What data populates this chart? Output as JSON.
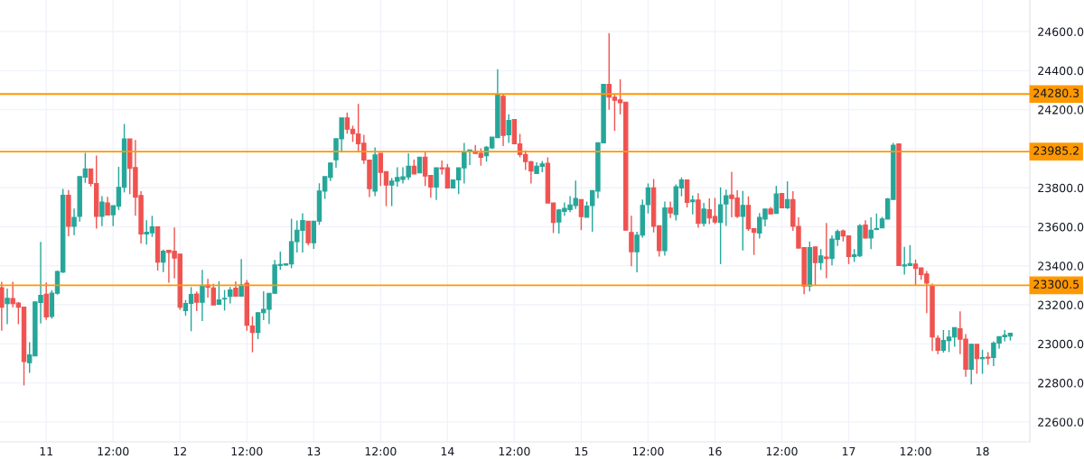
{
  "chart_data": {
    "type": "candlestick",
    "categories": [
      null,
      null,
      null,
      null,
      null,
      null,
      null,
      null,
      "11",
      null,
      null,
      null,
      null,
      null,
      null,
      null,
      null,
      null,
      null,
      null,
      "12:00",
      null,
      null,
      null,
      null,
      null,
      null,
      null,
      null,
      null,
      null,
      null,
      "12",
      null,
      null,
      null,
      null,
      null,
      null,
      null,
      null,
      null,
      null,
      null,
      "12:00",
      null,
      null,
      null,
      null,
      null,
      null,
      null,
      null,
      null,
      null,
      null,
      "13",
      null,
      null,
      null,
      null,
      null,
      null,
      null,
      null,
      null,
      null,
      null,
      "12:00",
      null,
      null,
      null,
      null,
      null,
      null,
      null,
      null,
      null,
      null,
      null,
      "14",
      null,
      null,
      null,
      null,
      null,
      null,
      null,
      null,
      null,
      null,
      null,
      "12:00",
      null,
      null,
      null,
      null,
      null,
      null,
      null,
      null,
      null,
      null,
      null,
      "15",
      null,
      null,
      null,
      null,
      null,
      null,
      null,
      null,
      null,
      null,
      null,
      "12:00",
      null,
      null,
      null,
      null,
      null,
      null,
      null,
      null,
      null,
      null,
      null,
      "16",
      null,
      null,
      null,
      null,
      null,
      null,
      null,
      null,
      null,
      null,
      null,
      "12:00",
      null,
      null,
      null,
      null,
      null,
      null,
      null,
      null,
      null,
      null,
      null,
      "17",
      null,
      null,
      null,
      null,
      null,
      null,
      null,
      null,
      null,
      null,
      null,
      "12:00",
      null,
      null,
      null,
      null,
      null,
      null,
      null,
      null,
      null,
      null,
      null,
      "18",
      null,
      null,
      null,
      null,
      null
    ],
    "ohlc": [
      [
        23288,
        23318,
        23067,
        23188
      ],
      [
        23206,
        23283,
        23101,
        23234
      ],
      [
        23232,
        23318,
        23188,
        23206
      ],
      [
        23209,
        23214,
        23101,
        23188
      ],
      [
        23188,
        23188,
        22787,
        22910
      ],
      [
        22904,
        23009,
        22852,
        22944
      ],
      [
        22938,
        23215,
        22938,
        23215
      ],
      [
        23212,
        23522,
        23104,
        23249
      ],
      [
        23254,
        23315,
        23123,
        23138
      ],
      [
        23141,
        23275,
        23129,
        23260
      ],
      [
        23260,
        23375,
        23252,
        23371
      ],
      [
        23368,
        23794,
        23363,
        23762
      ],
      [
        23762,
        23788,
        23551,
        23602
      ],
      [
        23602,
        23694,
        23557,
        23648
      ],
      [
        23653,
        23857,
        23626,
        23857
      ],
      [
        23854,
        23979,
        23825,
        23896
      ],
      [
        23896,
        23896,
        23807,
        23822
      ],
      [
        23822,
        23965,
        23591,
        23653
      ],
      [
        23653,
        23757,
        23603,
        23727
      ],
      [
        23722,
        23754,
        23660,
        23660
      ],
      [
        23662,
        23708,
        23603,
        23708
      ],
      [
        23705,
        23907,
        23686,
        23802
      ],
      [
        23802,
        24127,
        23776,
        24050
      ],
      [
        24050,
        24050,
        23768,
        23899
      ],
      [
        23904,
        24045,
        23656,
        23751
      ],
      [
        23760,
        23782,
        23514,
        23563
      ],
      [
        23563,
        23634,
        23509,
        23572
      ],
      [
        23569,
        23656,
        23548,
        23600
      ],
      [
        23600,
        23600,
        23375,
        23419
      ],
      [
        23419,
        23483,
        23368,
        23475
      ],
      [
        23480,
        23480,
        23314,
        23468
      ],
      [
        23475,
        23597,
        23335,
        23440
      ],
      [
        23460,
        23460,
        23175,
        23188
      ],
      [
        23171,
        23225,
        23145,
        23207
      ],
      [
        23207,
        23291,
        23065,
        23253
      ],
      [
        23256,
        23268,
        23168,
        23213
      ],
      [
        23213,
        23379,
        23117,
        23296
      ],
      [
        23302,
        23333,
        23237,
        23291
      ],
      [
        23287,
        23308,
        23199,
        23199
      ],
      [
        23203,
        23321,
        23203,
        23225
      ],
      [
        23230,
        23276,
        23171,
        23233
      ],
      [
        23243,
        23291,
        23207,
        23276
      ],
      [
        23285,
        23321,
        23245,
        23245
      ],
      [
        23245,
        23435,
        23245,
        23302
      ],
      [
        23311,
        23327,
        23068,
        23096
      ],
      [
        23091,
        23140,
        22957,
        23059
      ],
      [
        23059,
        23160,
        23025,
        23160
      ],
      [
        23160,
        23270,
        23122,
        23177
      ],
      [
        23177,
        23259,
        23102,
        23259
      ],
      [
        23259,
        23430,
        23259,
        23404
      ],
      [
        23402,
        23473,
        23379,
        23407
      ],
      [
        23404,
        23412,
        23402,
        23410
      ],
      [
        23410,
        23641,
        23388,
        23524
      ],
      [
        23524,
        23632,
        23468,
        23582
      ],
      [
        23582,
        23669,
        23468,
        23632
      ],
      [
        23629,
        23629,
        23505,
        23518
      ],
      [
        23518,
        23629,
        23487,
        23629
      ],
      [
        23629,
        23823,
        23610,
        23783
      ],
      [
        23783,
        23857,
        23743,
        23857
      ],
      [
        23853,
        23930,
        23835,
        23927
      ],
      [
        23943,
        24051,
        23903,
        24051
      ],
      [
        24051,
        24158,
        23984,
        24158
      ],
      [
        24158,
        24185,
        24077,
        24100
      ],
      [
        24100,
        24118,
        24035,
        24077
      ],
      [
        24076,
        24230,
        23984,
        24025
      ],
      [
        24028,
        24071,
        23922,
        23942
      ],
      [
        23942,
        23942,
        23753,
        23796
      ],
      [
        23783,
        24007,
        23757,
        23968
      ],
      [
        23976,
        23976,
        23809,
        23879
      ],
      [
        23883,
        23883,
        23706,
        23814
      ],
      [
        23814,
        23850,
        23706,
        23834
      ],
      [
        23834,
        23905,
        23806,
        23853
      ],
      [
        23843,
        23905,
        23822,
        23856
      ],
      [
        23856,
        23976,
        23840,
        23910
      ],
      [
        23910,
        23945,
        23871,
        23871
      ],
      [
        23876,
        23957,
        23876,
        23957
      ],
      [
        23957,
        23983,
        23809,
        23860
      ],
      [
        23863,
        23863,
        23749,
        23803
      ],
      [
        23803,
        23902,
        23737,
        23902
      ],
      [
        23902,
        23939,
        23868,
        23897
      ],
      [
        23902,
        23922,
        23799,
        23799
      ],
      [
        23799,
        23840,
        23799,
        23840
      ],
      [
        23840,
        23902,
        23768,
        23902
      ],
      [
        23902,
        24030,
        23822,
        23984
      ],
      [
        23984,
        23994,
        23917,
        23994
      ],
      [
        23988,
        24019,
        23976,
        23976
      ],
      [
        23976,
        24002,
        23913,
        23956
      ],
      [
        23964,
        24014,
        23934,
        24007
      ],
      [
        24004,
        24059,
        23999,
        24059
      ],
      [
        24057,
        24407,
        24057,
        24279
      ],
      [
        24268,
        24279,
        24014,
        24068
      ],
      [
        24071,
        24176,
        24030,
        24145
      ],
      [
        24150,
        24150,
        24025,
        24025
      ],
      [
        24025,
        24076,
        23956,
        23970
      ],
      [
        23970,
        23991,
        23891,
        23934
      ],
      [
        23934,
        23937,
        23822,
        23886
      ],
      [
        23873,
        23930,
        23873,
        23911
      ],
      [
        23910,
        23937,
        23879,
        23922
      ],
      [
        23925,
        23956,
        23722,
        23722
      ],
      [
        23722,
        23722,
        23568,
        23622
      ],
      [
        23625,
        23691,
        23565,
        23686
      ],
      [
        23679,
        23725,
        23657,
        23694
      ],
      [
        23688,
        23757,
        23675,
        23712
      ],
      [
        23709,
        23837,
        23691,
        23745
      ],
      [
        23740,
        23740,
        23583,
        23652
      ],
      [
        23649,
        23729,
        23649,
        23706
      ],
      [
        23709,
        23786,
        23575,
        23786
      ],
      [
        23783,
        24030,
        23745,
        24030
      ],
      [
        24030,
        24330,
        24030,
        24330
      ],
      [
        24330,
        24592,
        24199,
        24264
      ],
      [
        24264,
        24276,
        24091,
        24248
      ],
      [
        24250,
        24356,
        24176,
        24236
      ],
      [
        24239,
        24239,
        23583,
        23583
      ],
      [
        23571,
        23657,
        23398,
        23472
      ],
      [
        23472,
        23575,
        23367,
        23557
      ],
      [
        23557,
        23740,
        23545,
        23709
      ],
      [
        23714,
        23822,
        23668,
        23799
      ],
      [
        23799,
        23845,
        23571,
        23602
      ],
      [
        23606,
        23606,
        23447,
        23478
      ],
      [
        23478,
        23729,
        23452,
        23697
      ],
      [
        23697,
        23729,
        23645,
        23671
      ],
      [
        23663,
        23817,
        23632,
        23805
      ],
      [
        23799,
        23853,
        23756,
        23840
      ],
      [
        23840,
        23840,
        23699,
        23725
      ],
      [
        23728,
        23760,
        23663,
        23737
      ],
      [
        23737,
        23772,
        23595,
        23617
      ],
      [
        23617,
        23722,
        23602,
        23691
      ],
      [
        23688,
        23745,
        23614,
        23645
      ],
      [
        23653,
        23748,
        23614,
        23625
      ],
      [
        23622,
        23802,
        23409,
        23713
      ],
      [
        23717,
        23790,
        23605,
        23759
      ],
      [
        23763,
        23882,
        23648,
        23745
      ],
      [
        23748,
        23787,
        23645,
        23653
      ],
      [
        23653,
        23784,
        23479,
        23710
      ],
      [
        23710,
        23756,
        23579,
        23590
      ],
      [
        23591,
        23591,
        23456,
        23571
      ],
      [
        23568,
        23671,
        23540,
        23648
      ],
      [
        23640,
        23691,
        23602,
        23691
      ],
      [
        23691,
        23702,
        23666,
        23666
      ],
      [
        23668,
        23810,
        23668,
        23768
      ],
      [
        23771,
        23771,
        23697,
        23697
      ],
      [
        23697,
        23833,
        23691,
        23740
      ],
      [
        23740,
        23782,
        23579,
        23602
      ],
      [
        23602,
        23648,
        23491,
        23491
      ],
      [
        23494,
        23494,
        23255,
        23297
      ],
      [
        23297,
        23525,
        23269,
        23494
      ],
      [
        23497,
        23497,
        23302,
        23417
      ],
      [
        23417,
        23486,
        23379,
        23451
      ],
      [
        23445,
        23620,
        23337,
        23437
      ],
      [
        23437,
        23556,
        23402,
        23537
      ],
      [
        23535,
        23586,
        23502,
        23576
      ],
      [
        23579,
        23586,
        23525,
        23553
      ],
      [
        23553,
        23553,
        23409,
        23448
      ],
      [
        23448,
        23486,
        23420,
        23456
      ],
      [
        23451,
        23614,
        23445,
        23606
      ],
      [
        23609,
        23633,
        23540,
        23543
      ],
      [
        23543,
        23648,
        23486,
        23582
      ],
      [
        23586,
        23668,
        23583,
        23591
      ],
      [
        23594,
        23651,
        23594,
        23640
      ],
      [
        23640,
        23748,
        23640,
        23743
      ],
      [
        23740,
        24030,
        23740,
        24018
      ],
      [
        24025,
        24025,
        23402,
        23402
      ],
      [
        23399,
        23497,
        23355,
        23405
      ],
      [
        23402,
        23506,
        23402,
        23412
      ],
      [
        23409,
        23432,
        23302,
        23386
      ],
      [
        23389,
        23389,
        23328,
        23355
      ],
      [
        23358,
        23374,
        23158,
        23312
      ],
      [
        23297,
        23309,
        22963,
        23035
      ],
      [
        23029,
        23044,
        22947,
        22967
      ],
      [
        22967,
        23071,
        22955,
        23017
      ],
      [
        23017,
        23071,
        22958,
        23035
      ],
      [
        23035,
        23083,
        22986,
        23083
      ],
      [
        23078,
        23167,
        22947,
        23024
      ],
      [
        23024,
        23050,
        22832,
        22870
      ],
      [
        22870,
        23001,
        22793,
        22998
      ],
      [
        22998,
        22998,
        22847,
        22924
      ],
      [
        22924,
        22970,
        22847,
        22930
      ],
      [
        22932,
        22958,
        22893,
        22927
      ],
      [
        22930,
        23013,
        22886,
        23004
      ],
      [
        23004,
        23037,
        22975,
        23037
      ],
      [
        23037,
        23071,
        23013,
        23044
      ],
      [
        23040,
        23055,
        23017,
        23054
      ]
    ],
    "ylim": [
      22498,
      24762
    ],
    "yticks": [
      {
        "value": 22600,
        "label": "22600.0"
      },
      {
        "value": 22800,
        "label": "22800.0"
      },
      {
        "value": 23000,
        "label": "23000.0"
      },
      {
        "value": 23200,
        "label": "23200.0"
      },
      {
        "value": 23400,
        "label": "23400.0"
      },
      {
        "value": 23600,
        "label": "23600.0"
      },
      {
        "value": 23800,
        "label": "23800.0"
      },
      {
        "value": 24000,
        "label": null
      },
      {
        "value": 24200,
        "label": "24200.0"
      },
      {
        "value": 24400,
        "label": "24400.0"
      },
      {
        "value": 24600,
        "label": "24600.0"
      }
    ],
    "ref_lines": [
      {
        "axis": "y",
        "value": 24280.3,
        "label": "24280.3",
        "color": "#ff9800"
      },
      {
        "axis": "y",
        "value": 23985.2,
        "label": "23985.2",
        "color": "#ff9800"
      },
      {
        "axis": "y",
        "value": 23300.5,
        "label": "23300.5",
        "color": "#ff9800"
      }
    ],
    "grid": true,
    "legend": false
  }
}
